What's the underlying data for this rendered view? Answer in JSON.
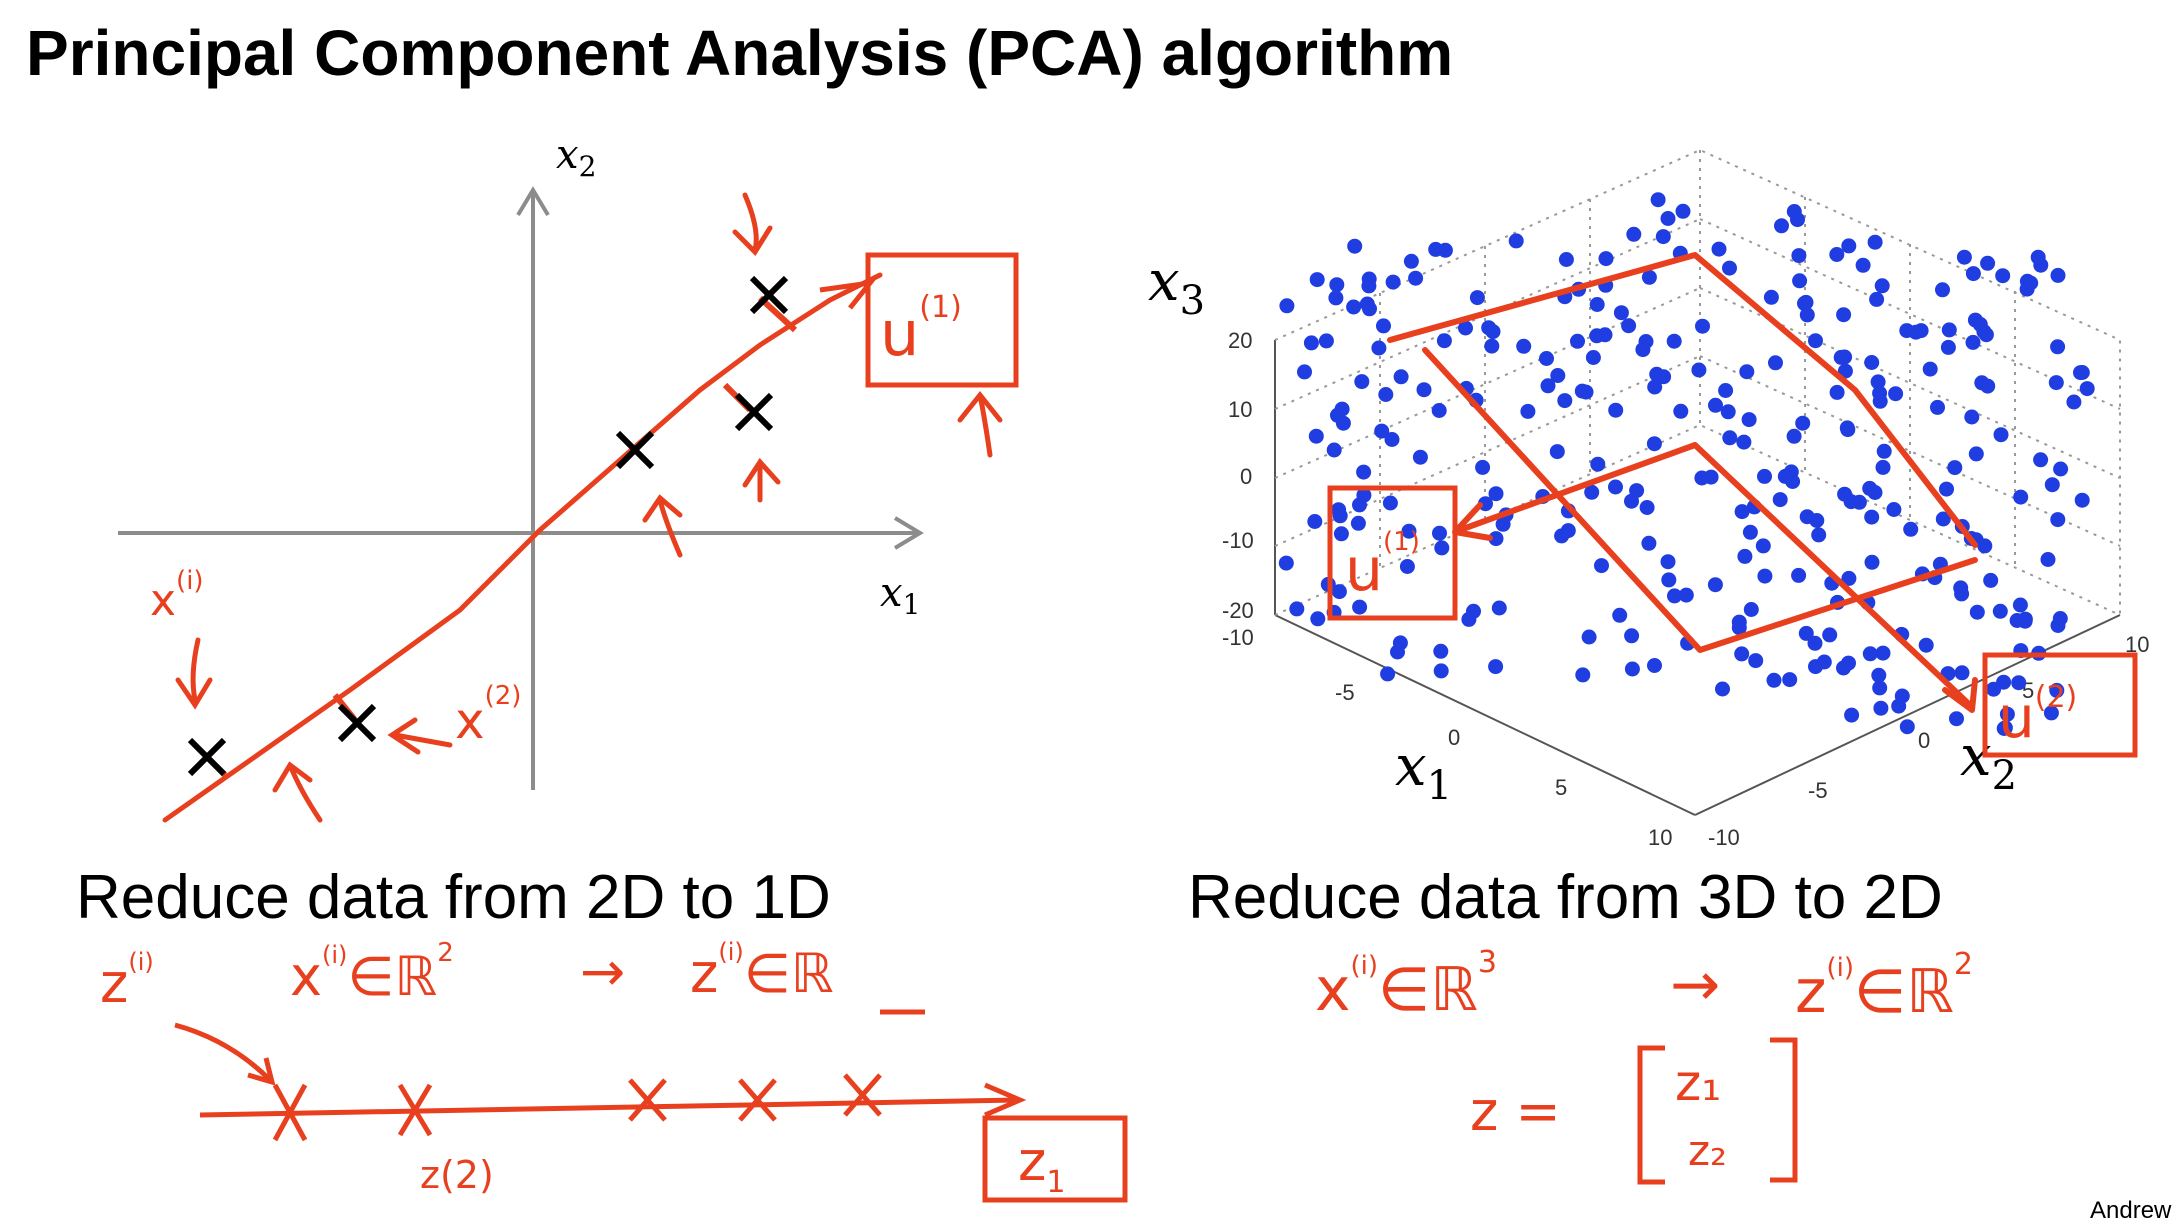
{
  "title": "Principal Component Analysis (PCA) algorithm",
  "left_panel": {
    "axis_x_label": "x",
    "axis_x_sub": "1",
    "axis_y_label": "x",
    "axis_y_sub": "2",
    "caption": "Reduce data from 2D to 1D",
    "notes": {
      "u1_base": "u",
      "u1_sup": "(1)",
      "x1_base": "x",
      "x1_sup": "(i)",
      "x2_base": "x",
      "x2_sup": "(2)",
      "mapping_z": "z",
      "mapping_z_sup": "(i)",
      "mapping_x": "x",
      "mapping_x_sup": "(i)",
      "mapping_in_r2": "∈ℝ",
      "mapping_r2_sup": "2",
      "mapping_arrow": "→",
      "mapping_z2": "z",
      "mapping_z2_sup": "(i)",
      "mapping_in_r": "∈ℝ",
      "line_label_z": "z(2)",
      "box_z1": "z",
      "box_z1_sub": "1"
    }
  },
  "right_panel": {
    "axis_x1_label": "x",
    "axis_x1_sub": "1",
    "axis_x2_label": "x",
    "axis_x2_sub": "2",
    "axis_x3_label": "x",
    "axis_x3_sub": "3",
    "z_ticks": [
      "20",
      "10",
      "0",
      "-10",
      "-20"
    ],
    "x1_ticks": [
      "-10",
      "-5",
      "0",
      "5",
      "10"
    ],
    "x2_ticks": [
      "-10",
      "-5",
      "0",
      "5",
      "10"
    ],
    "caption": "Reduce data from 3D to 2D",
    "notes": {
      "u1_base": "u",
      "u1_sup": "(1)",
      "u2_base": "u",
      "u2_sup": "(2)",
      "map_x": "x",
      "map_x_sup": "(i)",
      "map_in_r3": "∈ℝ",
      "map_r3_sup": "3",
      "map_arrow": "→",
      "map_z": "z",
      "map_z_sup": "(i)",
      "map_in_r2": "∈ℝ",
      "map_r2_sup": "2",
      "vec_lhs": "z =",
      "vec_z1": "z₁",
      "vec_z2": "z₂"
    }
  },
  "footer_author": "Andrew",
  "colors": {
    "annotation": "#e8401f",
    "points3d": "#1f3de0",
    "axis": "#8c8c8c",
    "text": "#000000"
  }
}
